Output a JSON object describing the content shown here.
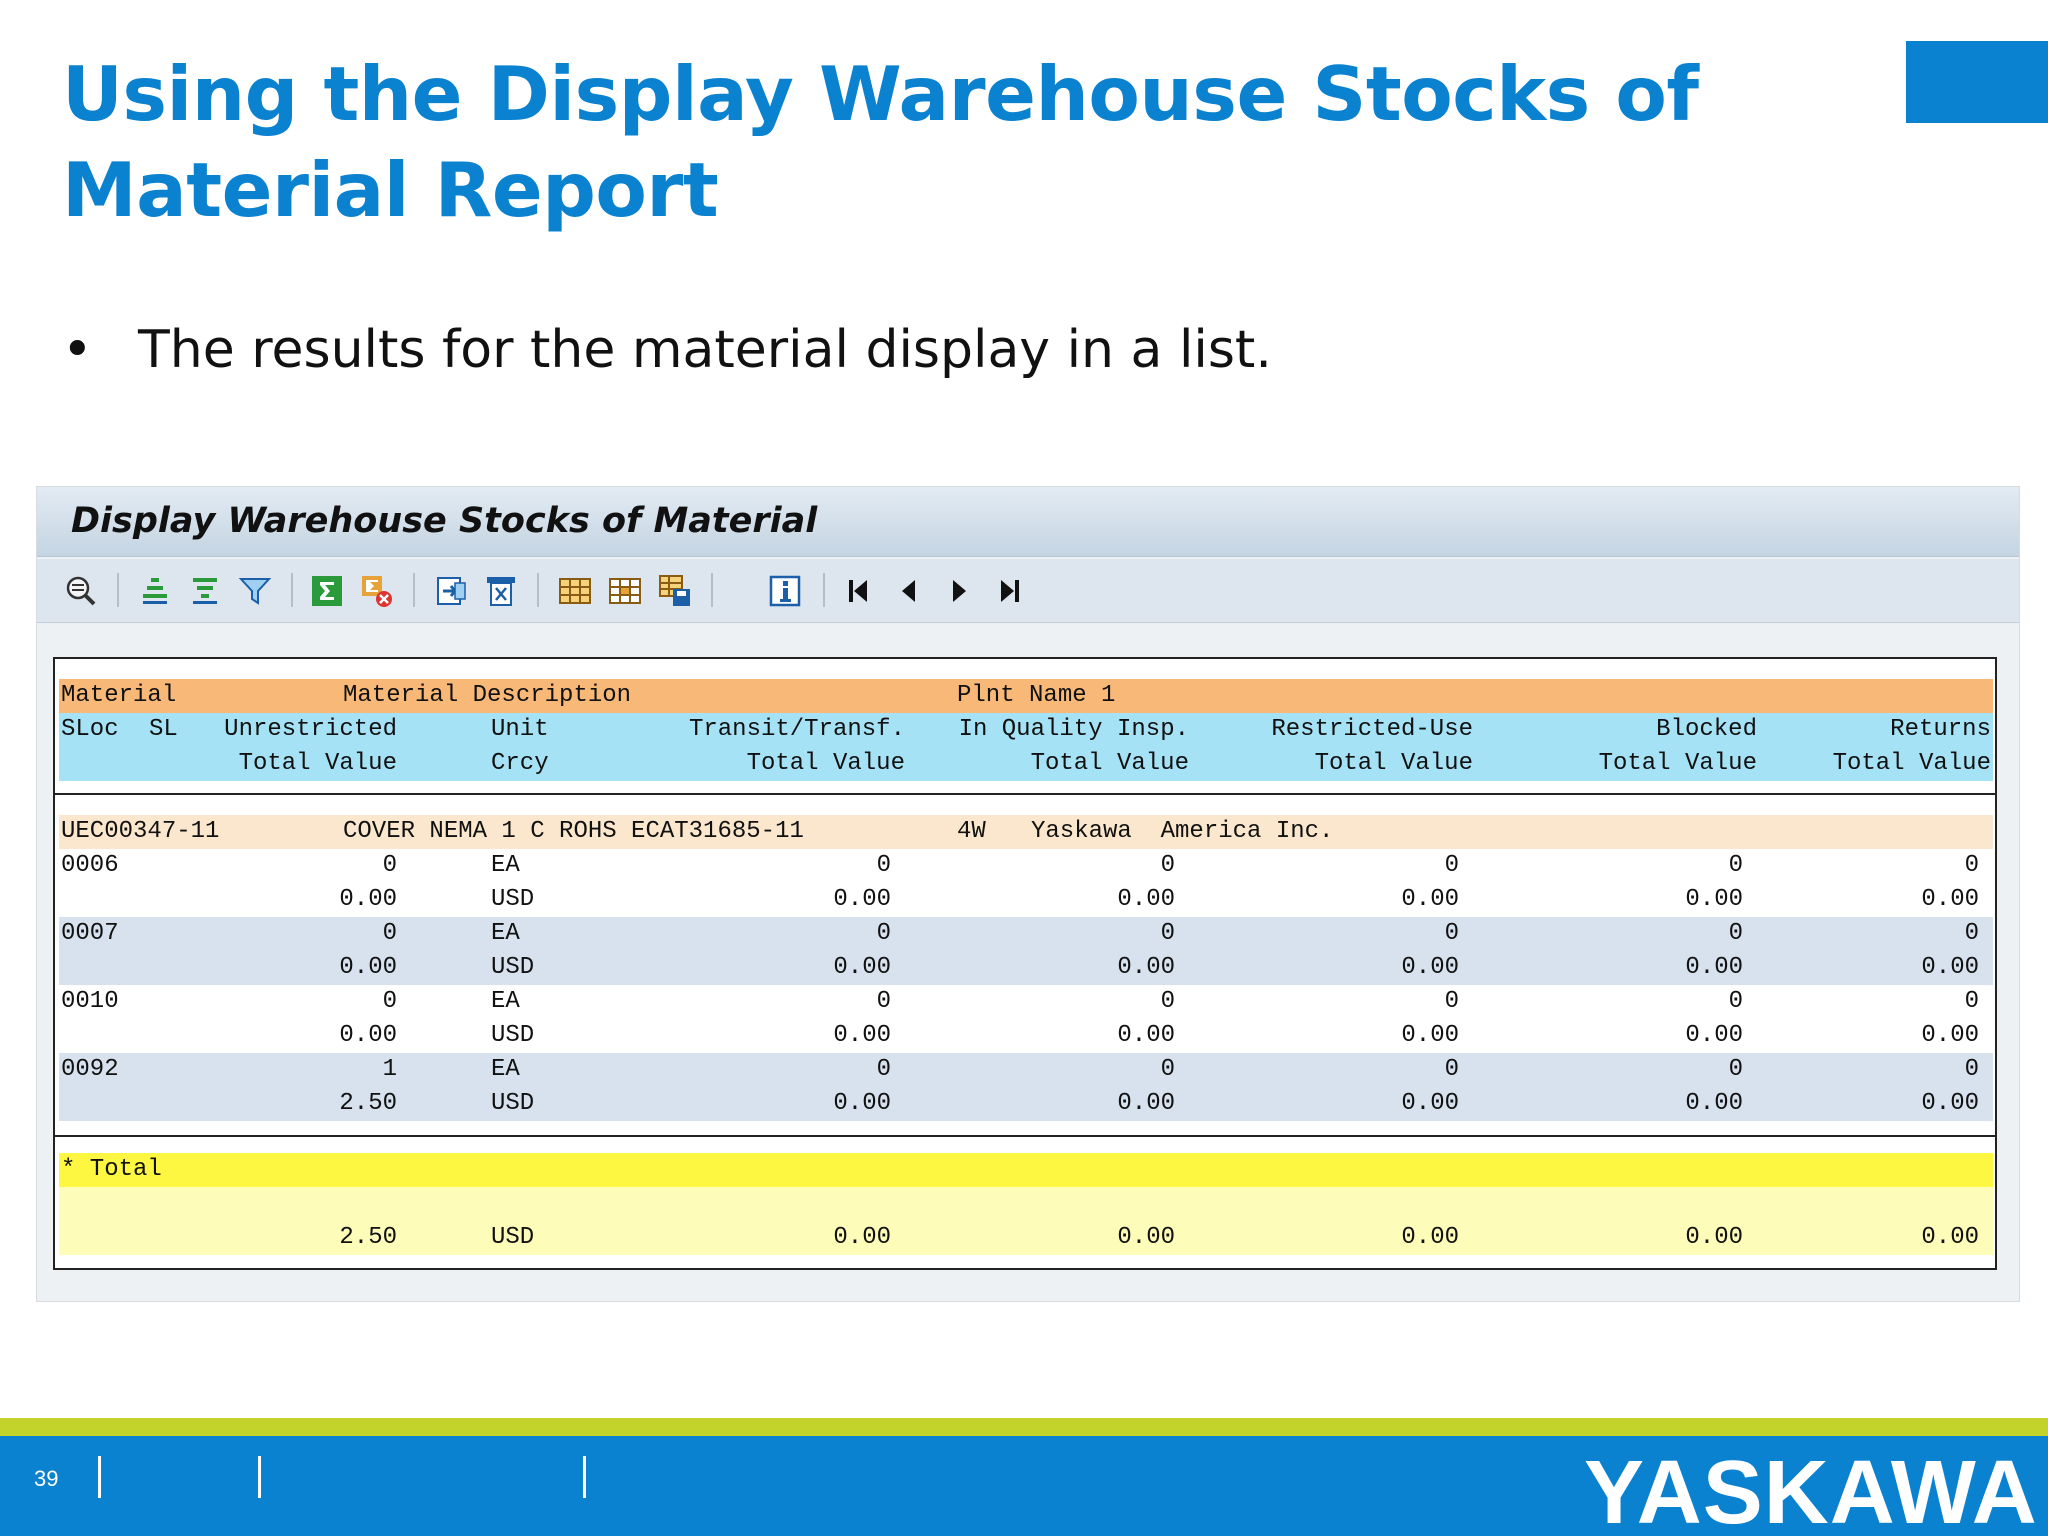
{
  "slide": {
    "title": "Using the Display Warehouse Stocks of Material Report",
    "bullet": "The results for the material display in a list.",
    "page_number": "39",
    "logo_text": "YASKAWA",
    "colors": {
      "accent": "#0a82d0",
      "strip": "#c3d32b"
    }
  },
  "sap": {
    "window_title": "Display Warehouse Stocks of Material",
    "toolbar": [
      "details-icon",
      "sort-ascending-icon",
      "sort-descending-icon",
      "filter-icon",
      "sum-icon",
      "subtotal-icon",
      "export-icon",
      "print-preview-icon",
      "layout-icon",
      "change-layout-icon",
      "save-layout-icon",
      "info-icon",
      "first-page-icon",
      "previous-page-icon",
      "next-page-icon",
      "last-page-icon"
    ],
    "headers": {
      "row1": {
        "material": "Material",
        "description": "Material Description",
        "plant": "Plnt Name 1"
      },
      "row2": {
        "sloc": "SLoc",
        "sl": "SL",
        "unrestricted": "Unrestricted",
        "unit": "Unit",
        "transit": "Transit/Transf.",
        "quality": "In Quality Insp.",
        "restricted": "Restricted-Use",
        "blocked": "Blocked",
        "returns": "Returns"
      },
      "row3": {
        "tv1": "Total Value",
        "crcy": "Crcy",
        "tv2": "Total Value",
        "tv3": "Total Value",
        "tv4": "Total Value",
        "tv5": "Total Value",
        "tv6": "Total Value"
      }
    },
    "material": {
      "number": "UEC00347-11",
      "description": "COVER NEMA 1 C ROHS ECAT31685-11",
      "plant": "4W",
      "name": "Yaskawa  America Inc."
    },
    "rows": [
      {
        "sloc": "0006",
        "qty": "0",
        "unit": "EA",
        "transit": "0",
        "quality": "0",
        "restricted": "0",
        "blocked": "0",
        "returns": "0",
        "val": "0.00",
        "crcy": "USD",
        "v_transit": "0.00",
        "v_quality": "0.00",
        "v_restricted": "0.00",
        "v_blocked": "0.00",
        "v_returns": "0.00"
      },
      {
        "sloc": "0007",
        "qty": "0",
        "unit": "EA",
        "transit": "0",
        "quality": "0",
        "restricted": "0",
        "blocked": "0",
        "returns": "0",
        "val": "0.00",
        "crcy": "USD",
        "v_transit": "0.00",
        "v_quality": "0.00",
        "v_restricted": "0.00",
        "v_blocked": "0.00",
        "v_returns": "0.00"
      },
      {
        "sloc": "0010",
        "qty": "0",
        "unit": "EA",
        "transit": "0",
        "quality": "0",
        "restricted": "0",
        "blocked": "0",
        "returns": "0",
        "val": "0.00",
        "crcy": "USD",
        "v_transit": "0.00",
        "v_quality": "0.00",
        "v_restricted": "0.00",
        "v_blocked": "0.00",
        "v_returns": "0.00"
      },
      {
        "sloc": "0092",
        "qty": "1",
        "unit": "EA",
        "transit": "0",
        "quality": "0",
        "restricted": "0",
        "blocked": "0",
        "returns": "0",
        "val": "2.50",
        "crcy": "USD",
        "v_transit": "0.00",
        "v_quality": "0.00",
        "v_restricted": "0.00",
        "v_blocked": "0.00",
        "v_returns": "0.00"
      }
    ],
    "total": {
      "label": "* Total",
      "val": "2.50",
      "crcy": "USD",
      "v_transit": "0.00",
      "v_quality": "0.00",
      "v_restricted": "0.00",
      "v_blocked": "0.00",
      "v_returns": "0.00"
    }
  }
}
